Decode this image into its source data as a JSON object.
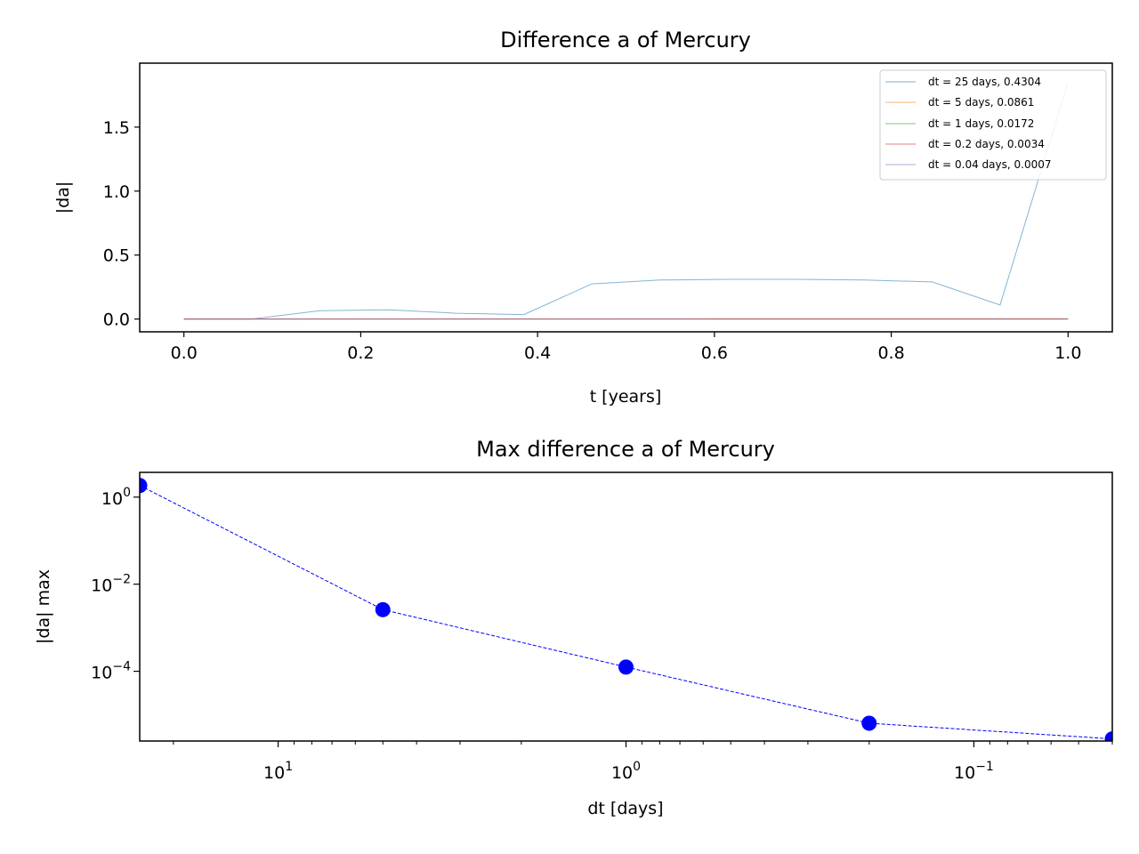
{
  "chart_data": [
    {
      "type": "line",
      "title": "Difference a of Mercury",
      "xlabel": "t [years]",
      "ylabel": "|da|",
      "xlim": [
        -0.05,
        1.05
      ],
      "ylim": [
        -0.1,
        2.0
      ],
      "xticks": [
        0.0,
        0.2,
        0.4,
        0.6,
        0.8,
        1.0
      ],
      "xtick_labels": [
        "0.0",
        "0.2",
        "0.4",
        "0.6",
        "0.8",
        "1.0"
      ],
      "yticks": [
        0.0,
        0.5,
        1.0,
        1.5
      ],
      "ytick_labels": [
        "0.0",
        "0.5",
        "1.0",
        "1.5"
      ],
      "grid": false,
      "legend_position": "upper-right",
      "series": [
        {
          "name": "dt = 25 days, 0.4304",
          "color": "#1f77b4",
          "x": [
            0.0,
            0.0769,
            0.1538,
            0.2308,
            0.3077,
            0.3846,
            0.4615,
            0.5385,
            0.6154,
            0.6923,
            0.7692,
            0.8462,
            0.9231,
            1.0
          ],
          "y": [
            0.0,
            0.0,
            0.065,
            0.072,
            0.045,
            0.035,
            0.275,
            0.305,
            0.31,
            0.31,
            0.305,
            0.29,
            0.11,
            1.85
          ]
        },
        {
          "name": "dt = 5 days, 0.0861",
          "color": "#ff7f0e",
          "x": [
            0.0,
            0.2,
            0.4,
            0.6,
            0.8,
            1.0
          ],
          "y": [
            0.0,
            0.001,
            0.001,
            0.002,
            0.002,
            0.003
          ]
        },
        {
          "name": "dt = 1 days, 0.0172",
          "color": "#2ca02c",
          "x": [
            0.0,
            0.2,
            0.4,
            0.6,
            0.8,
            1.0
          ],
          "y": [
            0.0,
            0.0,
            0.0,
            0.0001,
            0.0001,
            0.0001
          ]
        },
        {
          "name": "dt = 0.2 days, 0.0034",
          "color": "#d62728",
          "x": [
            0.0,
            0.2,
            0.4,
            0.6,
            0.8,
            1.0
          ],
          "y": [
            0.0,
            0.0,
            0.0,
            0.0,
            0.0,
            0.0
          ]
        },
        {
          "name": "dt = 0.04 days, 0.0007",
          "color": "#9467bd",
          "x": [
            0.0,
            0.2,
            0.4,
            0.6,
            0.8,
            1.0
          ],
          "y": [
            0.0,
            0.0,
            0.0,
            0.0,
            0.0,
            0.0
          ]
        }
      ]
    },
    {
      "type": "line",
      "title": "Max difference a of Mercury",
      "xlabel": "dt [days]",
      "ylabel": "|da| max",
      "xscale": "log",
      "yscale": "log",
      "x_inverted": true,
      "xlim": [
        25,
        0.04
      ],
      "ylim": [
        2.5e-06,
        3.7
      ],
      "xticks": [
        10,
        1,
        0.1
      ],
      "xtick_labels": [
        {
          "base": "10",
          "exp": "1"
        },
        {
          "base": "10",
          "exp": "0"
        },
        {
          "base": "10",
          "exp": "−1"
        }
      ],
      "yticks": [
        1,
        0.01,
        0.0001
      ],
      "ytick_labels": [
        {
          "base": "10",
          "exp": "0"
        },
        {
          "base": "10",
          "exp": "−2"
        },
        {
          "base": "10",
          "exp": "−4"
        }
      ],
      "grid": false,
      "series": [
        {
          "color": "#0000ff",
          "line_style": "dashed",
          "marker": "circle",
          "x": [
            25,
            5,
            1,
            0.2,
            0.04
          ],
          "y": [
            1.85,
            0.0026,
            0.000125,
            6.4e-06,
            2.8e-06
          ]
        }
      ]
    }
  ]
}
